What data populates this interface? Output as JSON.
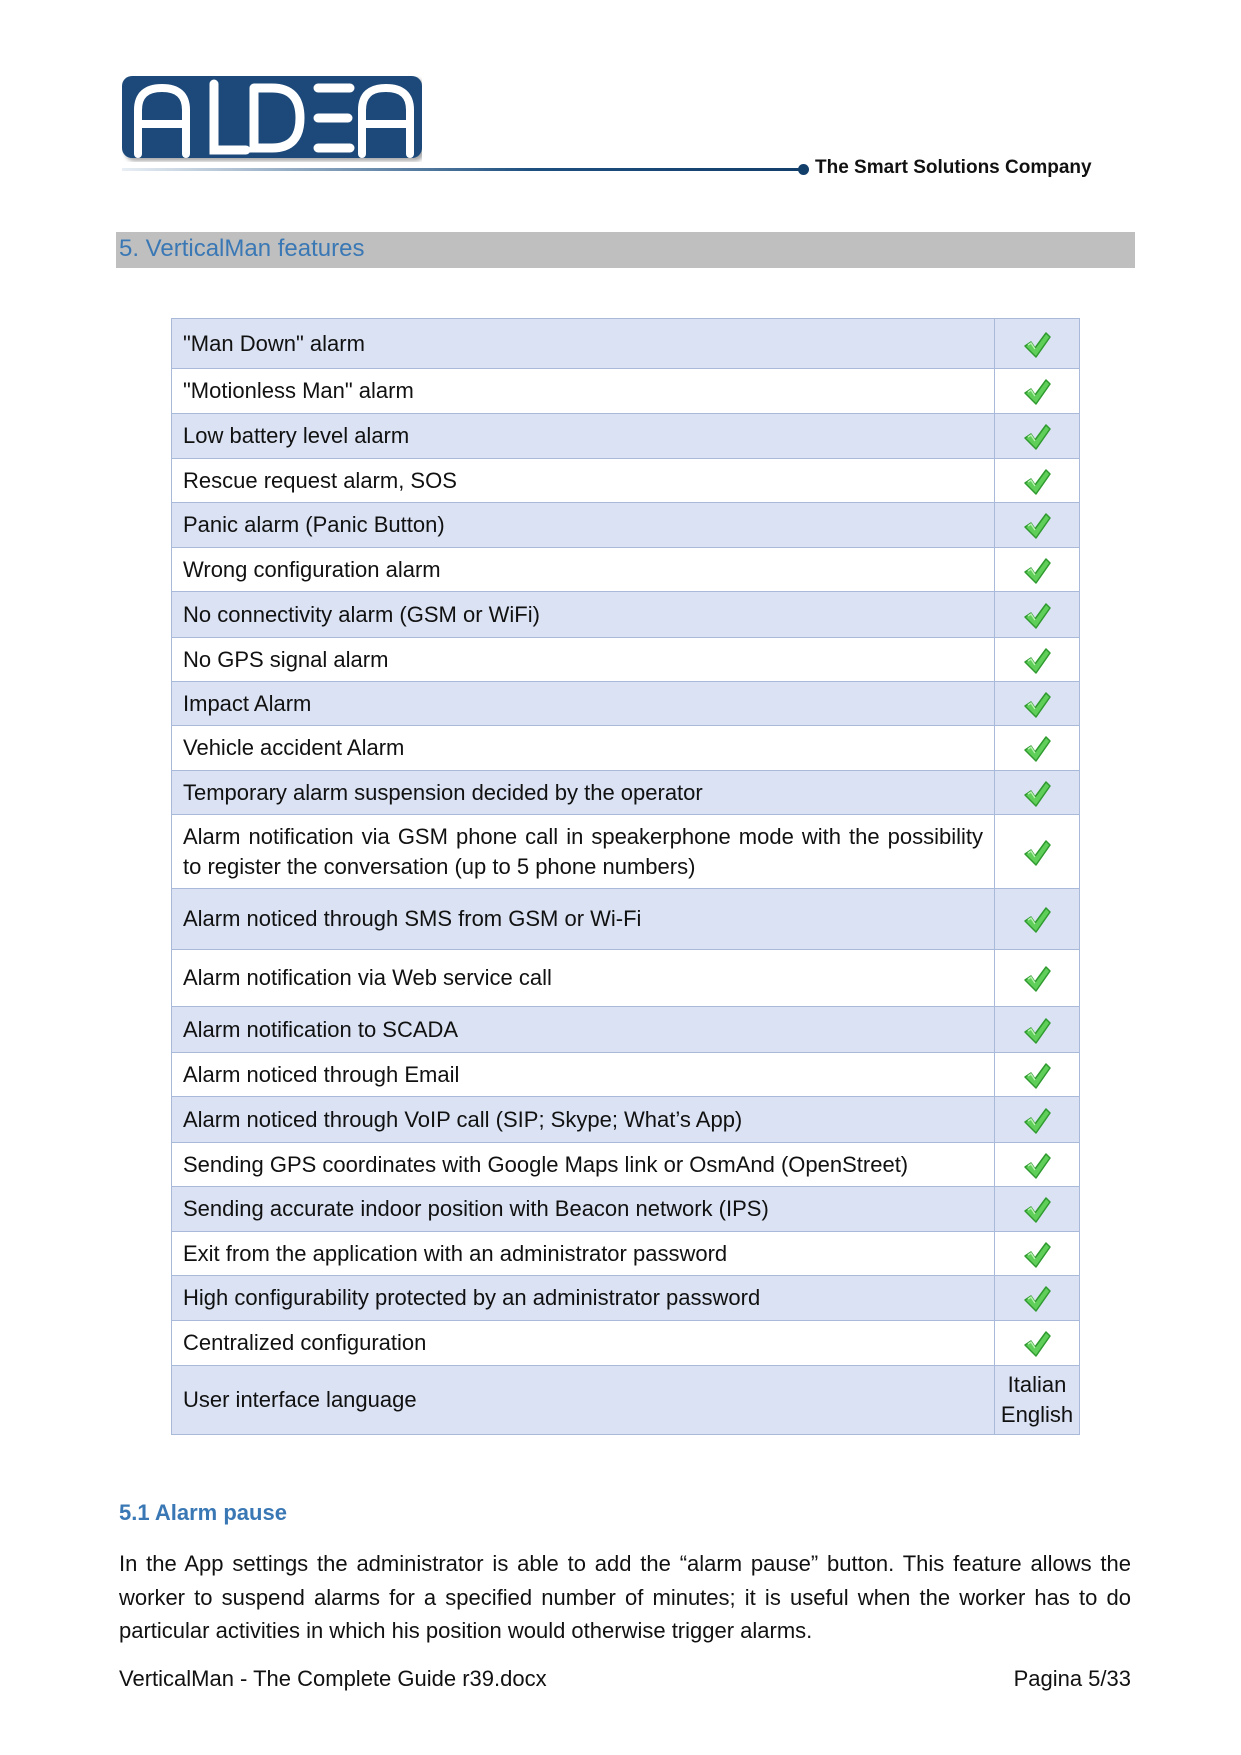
{
  "header": {
    "logo_text": "ALDEA",
    "tagline": "The Smart Solutions Company",
    "brand_color": "#1b4a7a"
  },
  "section": {
    "title": "5.  VerticalMan features"
  },
  "features": [
    {
      "label": "\"Man Down\" alarm",
      "value": "check"
    },
    {
      "label": "\"Motionless Man\" alarm",
      "value": "check"
    },
    {
      "label": "Low battery level alarm",
      "value": "check"
    },
    {
      "label": "Rescue request alarm, SOS",
      "value": "check"
    },
    {
      "label": "Panic alarm (Panic Button)",
      "value": "check"
    },
    {
      "label": "Wrong configuration alarm",
      "value": "check"
    },
    {
      "label": "No connectivity alarm (GSM or WiFi)",
      "value": "check"
    },
    {
      "label": "No GPS signal alarm",
      "value": "check"
    },
    {
      "label": "Impact Alarm",
      "value": "check"
    },
    {
      "label": "Vehicle accident Alarm",
      "value": "check"
    },
    {
      "label": "Temporary alarm suspension decided by the operator",
      "value": "check"
    },
    {
      "label": "Alarm notification via GSM phone call in speakerphone mode with the possibility to register the conversation (up to 5 phone numbers)",
      "value": "check"
    },
    {
      "label": "Alarm noticed through SMS from GSM or Wi-Fi",
      "value": "check"
    },
    {
      "label": "Alarm notification via Web service call",
      "value": "check"
    },
    {
      "label": "Alarm notification to SCADA",
      "value": "check"
    },
    {
      "label": "Alarm noticed through Email",
      "value": "check"
    },
    {
      "label": "Alarm noticed through VoIP call (SIP; Skype; What’s App)",
      "value": "check"
    },
    {
      "label": "Sending GPS coordinates with Google Maps link or OsmAnd (OpenStreet)",
      "value": "check"
    },
    {
      "label": "Sending accurate indoor position with Beacon network (IPS)",
      "value": "check"
    },
    {
      "label": "Exit from the application with an administrator password",
      "value": "check"
    },
    {
      "label": "High configurability protected by an administrator password",
      "value": "check"
    },
    {
      "label": "Centralized configuration",
      "value": "check"
    },
    {
      "label": "User interface language",
      "value": "text",
      "lines": [
        "Italian",
        "English"
      ]
    }
  ],
  "subsection": {
    "title": "5.1 Alarm pause",
    "body": "In the App settings the administrator is able to add the “alarm pause” button. This feature allows the worker to suspend alarms for a specified number of minutes; it is useful when the worker has to do particular activities in which his position would otherwise trigger alarms."
  },
  "footer": {
    "document": "VerticalMan - The Complete Guide r39.docx",
    "page": "Pagina 5/33"
  },
  "colors": {
    "heading": "#3a78b5",
    "row_shade": "#dae2f3",
    "check": "#4cc24c"
  }
}
